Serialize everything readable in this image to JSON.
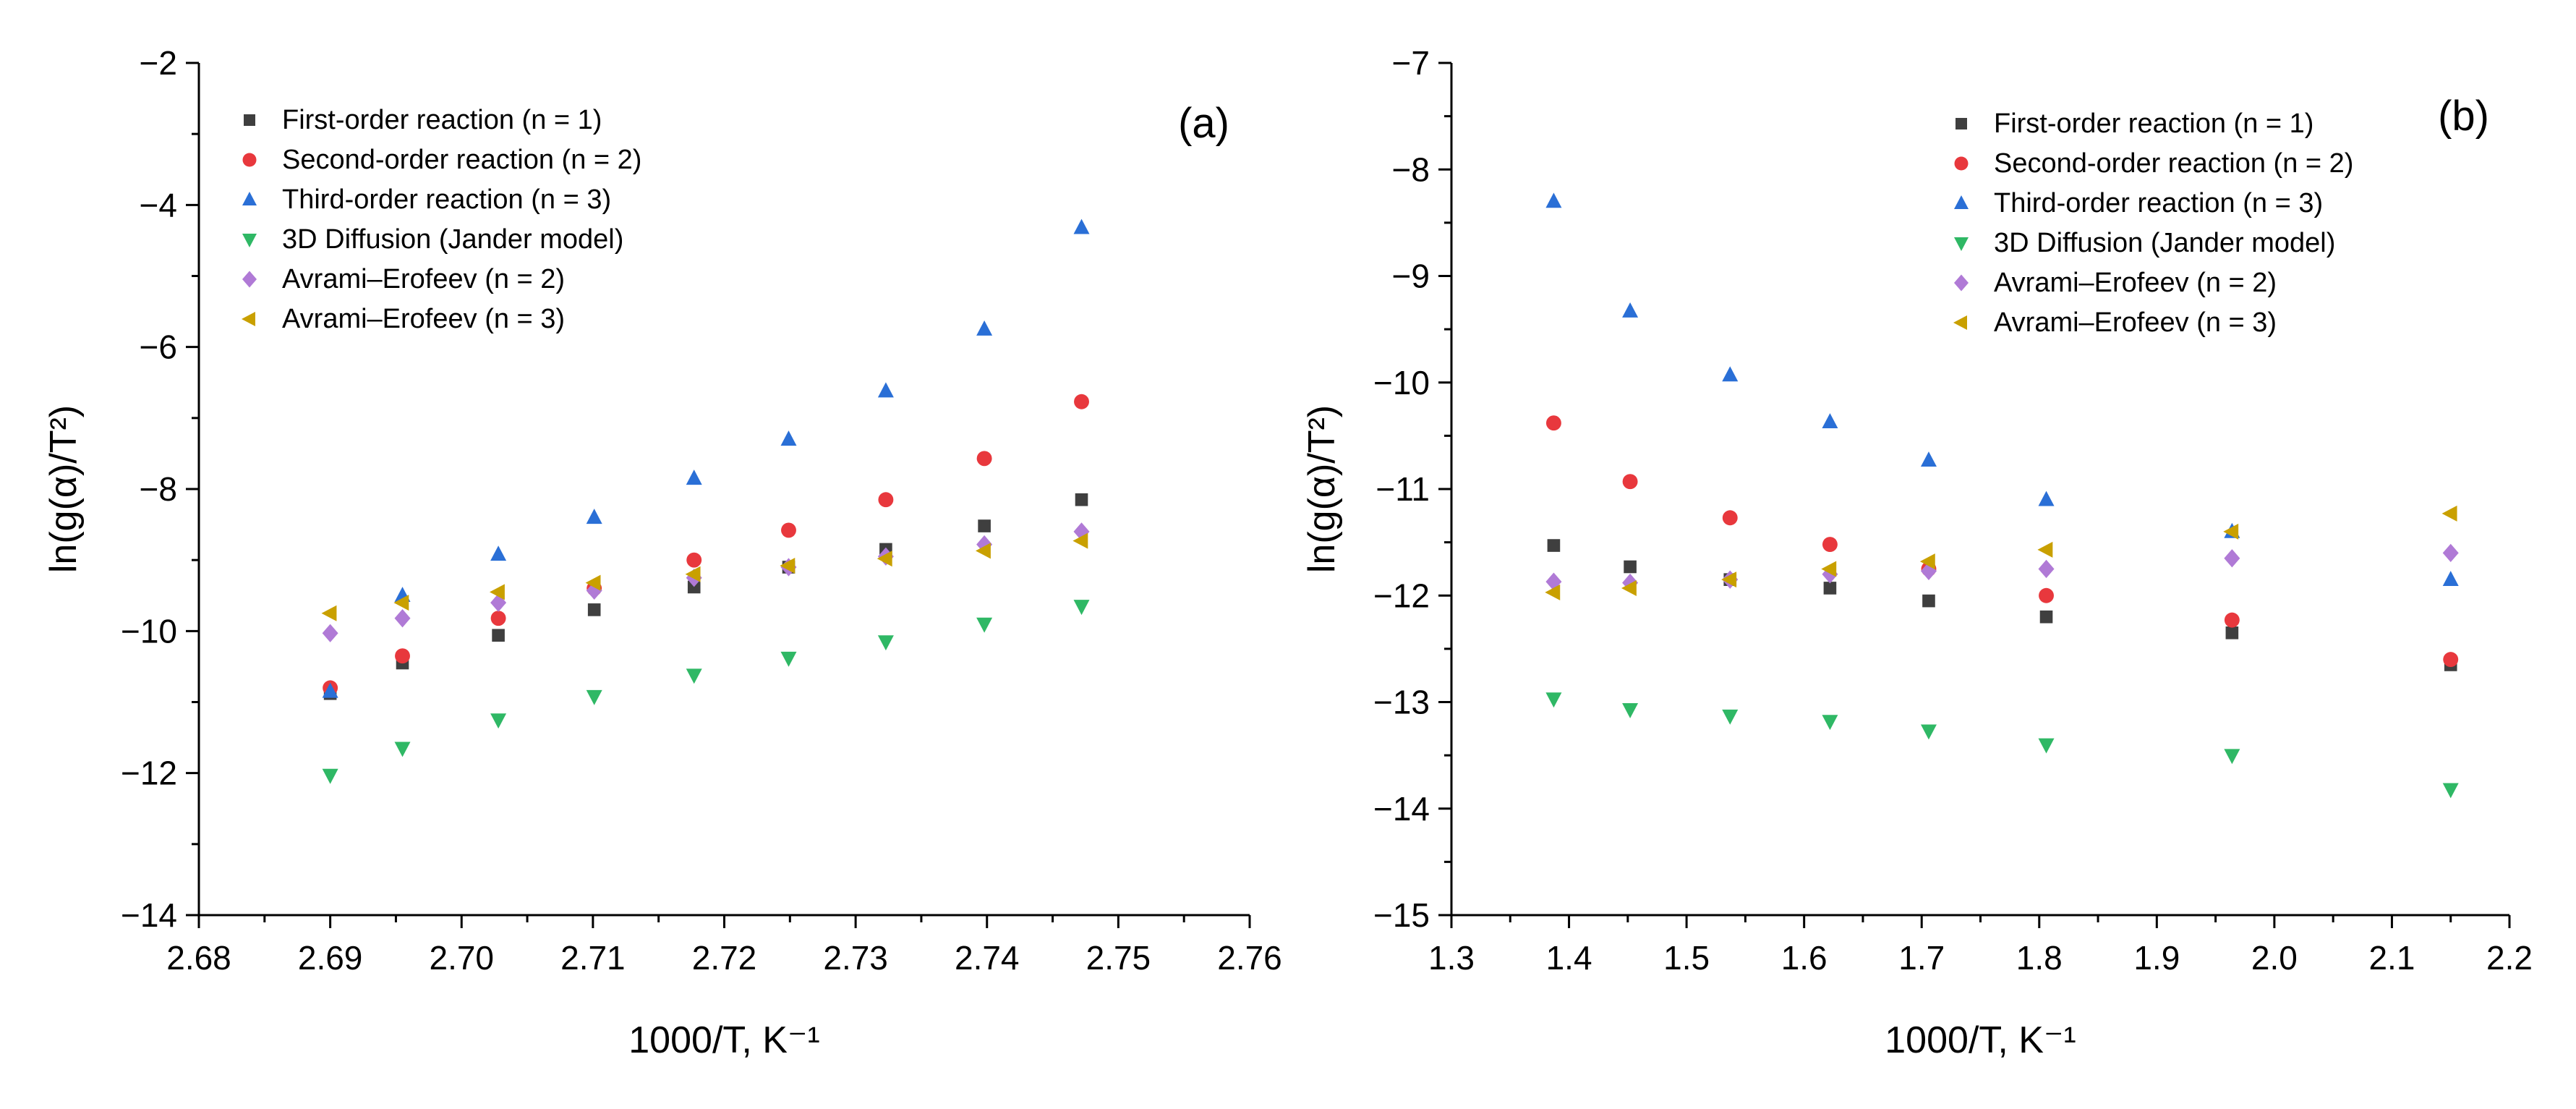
{
  "chart_data": [
    {
      "type": "scatter",
      "panel_label": "(a)",
      "xlabel": "1000/T, K⁻¹",
      "ylabel": "ln(g(α)/T²)",
      "xlim": [
        2.68,
        2.76
      ],
      "ylim": [
        -14,
        -2
      ],
      "xticks": [
        "2.68",
        "2.69",
        "2.70",
        "2.71",
        "2.72",
        "2.73",
        "2.74",
        "2.75",
        "2.76"
      ],
      "yticks": [
        "−14",
        "−12",
        "−10",
        "−8",
        "−6",
        "−4",
        "−2"
      ],
      "x": [
        2.69,
        2.6955,
        2.7028,
        2.7101,
        2.7177,
        2.7249,
        2.7323,
        2.7398,
        2.7472
      ],
      "legend_position": "top-left",
      "series": [
        {
          "name": "First-order reaction (n = 1)",
          "marker": "square",
          "color": "#3f3f3f",
          "values": [
            -10.88,
            -10.45,
            -10.06,
            -9.7,
            -9.38,
            -9.1,
            -8.85,
            -8.52,
            -8.15
          ]
        },
        {
          "name": "Second-order reaction (n = 2)",
          "marker": "circle",
          "color": "#e8383d",
          "values": [
            -10.8,
            -10.35,
            -9.82,
            -9.4,
            -9.0,
            -8.58,
            -8.15,
            -7.57,
            -6.77
          ]
        },
        {
          "name": "Third-order reaction (n = 3)",
          "marker": "triangle-up",
          "color": "#2a6fd6",
          "values": [
            -10.85,
            -9.5,
            -8.92,
            -8.4,
            -7.85,
            -7.3,
            -6.62,
            -5.75,
            -4.32
          ]
        },
        {
          "name": "3D Diffusion (Jander model)",
          "marker": "triangle-down",
          "color": "#2fb865",
          "values": [
            -12.03,
            -11.65,
            -11.25,
            -10.92,
            -10.62,
            -10.38,
            -10.15,
            -9.9,
            -9.65
          ]
        },
        {
          "name": "Avrami–Erofeev (n = 2)",
          "marker": "diamond",
          "color": "#b07ad6",
          "values": [
            -10.03,
            -9.82,
            -9.6,
            -9.43,
            -9.25,
            -9.1,
            -8.95,
            -8.78,
            -8.6
          ]
        },
        {
          "name": "Avrami–Erofeev (n = 3)",
          "marker": "triangle-left",
          "color": "#c9a000",
          "values": [
            -9.75,
            -9.6,
            -9.45,
            -9.32,
            -9.2,
            -9.08,
            -8.98,
            -8.87,
            -8.73
          ]
        }
      ]
    },
    {
      "type": "scatter",
      "panel_label": "(b)",
      "xlabel": "1000/T, K⁻¹",
      "ylabel": "ln(g(α)/T²)",
      "xlim": [
        1.3,
        2.2
      ],
      "ylim": [
        -15,
        -7
      ],
      "xticks": [
        "1.3",
        "1.4",
        "1.5",
        "1.6",
        "1.7",
        "1.8",
        "1.9",
        "2.0",
        "2.1",
        "2.2"
      ],
      "yticks": [
        "−15",
        "−14",
        "−13",
        "−12",
        "−11",
        "−10",
        "−9",
        "−8",
        "−7"
      ],
      "x": [
        1.387,
        1.452,
        1.537,
        1.622,
        1.706,
        1.806,
        1.964,
        2.15
      ],
      "legend_position": "top-right",
      "series": [
        {
          "name": "First-order reaction (n = 1)",
          "marker": "square",
          "color": "#3f3f3f",
          "values": [
            -11.53,
            -11.73,
            -11.85,
            -11.93,
            -12.05,
            -12.2,
            -12.35,
            -12.65
          ]
        },
        {
          "name": "Second-order reaction (n = 2)",
          "marker": "circle",
          "color": "#e8383d",
          "values": [
            -10.38,
            -10.93,
            -11.27,
            -11.52,
            -11.75,
            -12.0,
            -12.23,
            -12.6
          ]
        },
        {
          "name": "Third-order reaction (n = 3)",
          "marker": "triangle-up",
          "color": "#2a6fd6",
          "values": [
            -8.3,
            -9.33,
            -9.93,
            -10.37,
            -10.73,
            -11.1,
            -11.4,
            -11.85
          ]
        },
        {
          "name": "3D Diffusion (Jander model)",
          "marker": "triangle-down",
          "color": "#2fb865",
          "values": [
            -12.97,
            -13.07,
            -13.13,
            -13.18,
            -13.27,
            -13.4,
            -13.5,
            -13.82
          ]
        },
        {
          "name": "Avrami–Erofeev (n = 2)",
          "marker": "diamond",
          "color": "#b07ad6",
          "values": [
            -11.87,
            -11.88,
            -11.85,
            -11.8,
            -11.77,
            -11.75,
            -11.65,
            -11.6
          ]
        },
        {
          "name": "Avrami–Erofeev (n = 3)",
          "marker": "triangle-left",
          "color": "#c9a000",
          "values": [
            -11.97,
            -11.93,
            -11.85,
            -11.75,
            -11.68,
            -11.57,
            -11.4,
            -11.23
          ]
        }
      ]
    }
  ]
}
